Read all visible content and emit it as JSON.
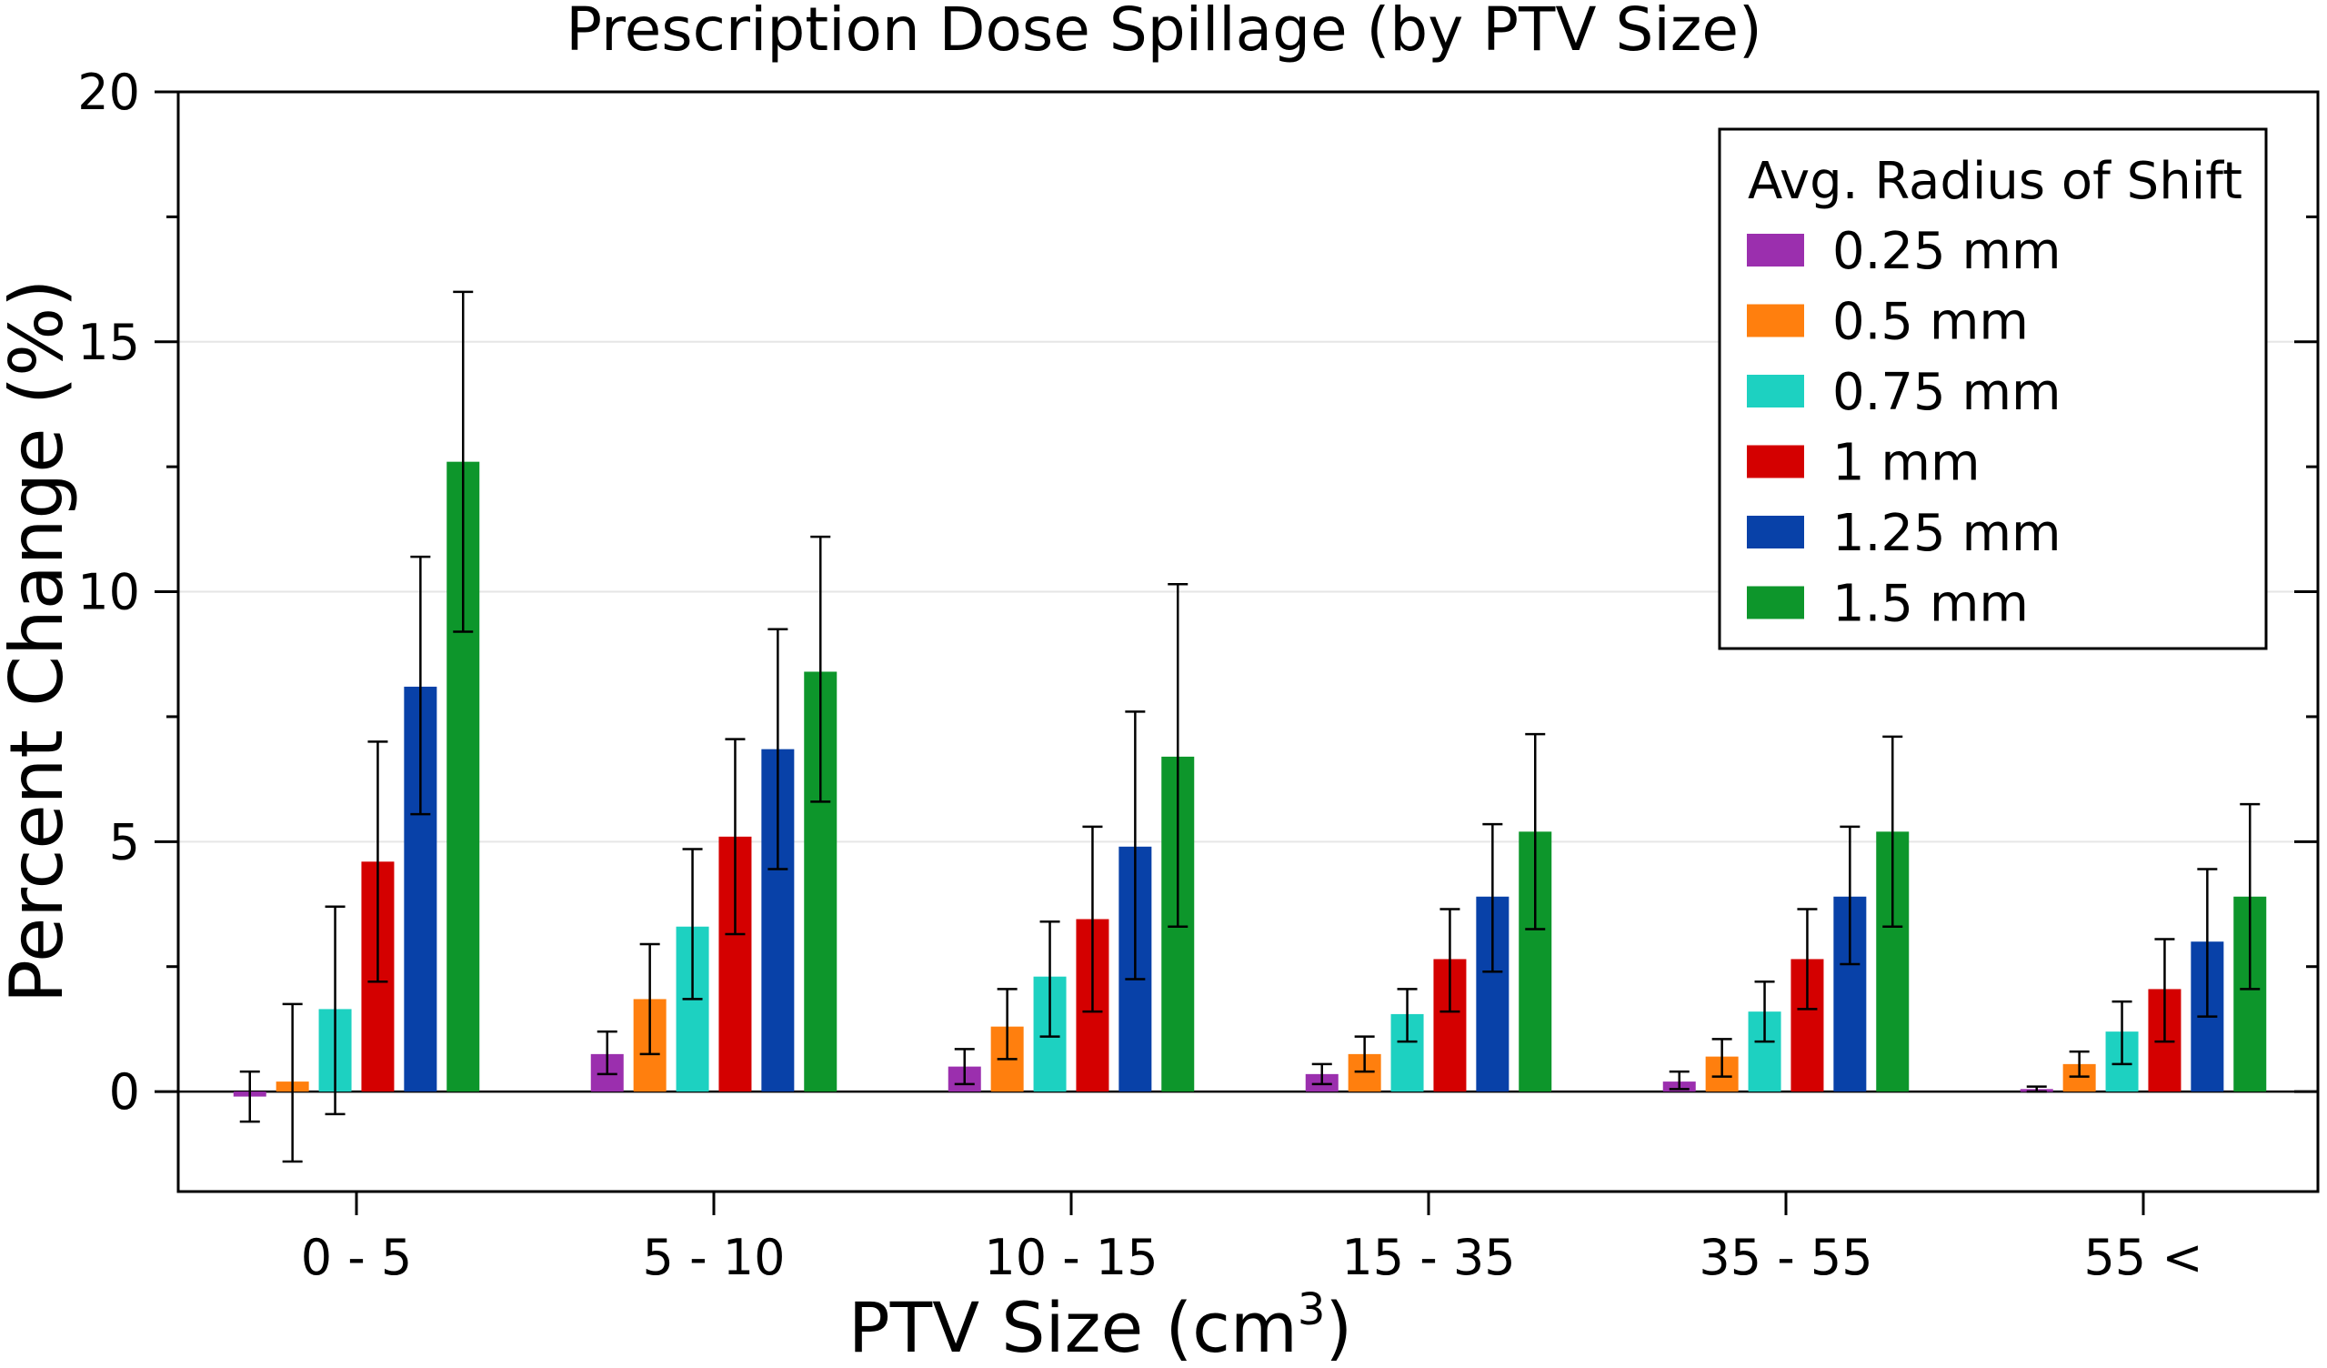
{
  "chart_data": {
    "type": "bar",
    "title": "Prescription Dose Spillage (by PTV Size)",
    "xlabel": "PTV Size (cm",
    "xlabel_superscript": "3",
    "xlabel_suffix": ")",
    "ylabel": "Percent Change (%)",
    "ylim": [
      -2,
      20
    ],
    "yticks": [
      0,
      5,
      10,
      15,
      20
    ],
    "ytick_labels": [
      "0",
      "5",
      "10",
      "15",
      "20"
    ],
    "grid": "horizontal",
    "legend_title": "Avg. Radius of Shift",
    "legend_position": "top-right",
    "categories": [
      "0 - 5",
      "5 - 10",
      "10 - 15",
      "15 - 35",
      "35 - 55",
      "55 <"
    ],
    "series": [
      {
        "name": "0.25 mm",
        "color": "#9b2fae",
        "values": [
          -0.1,
          0.75,
          0.5,
          0.35,
          0.2,
          0.05
        ],
        "err_low": [
          -0.6,
          0.35,
          0.15,
          0.15,
          0.05,
          0.0
        ],
        "err_high": [
          0.4,
          1.2,
          0.85,
          0.55,
          0.4,
          0.1
        ]
      },
      {
        "name": "0.5 mm",
        "color": "#ff7f0e",
        "values": [
          0.2,
          1.85,
          1.3,
          0.75,
          0.7,
          0.55
        ],
        "err_low": [
          -1.4,
          0.75,
          0.65,
          0.4,
          0.3,
          0.3
        ],
        "err_high": [
          1.75,
          2.95,
          2.05,
          1.1,
          1.05,
          0.8
        ]
      },
      {
        "name": "0.75 mm",
        "color": "#1dd1c1",
        "values": [
          1.65,
          3.3,
          2.3,
          1.55,
          1.6,
          1.2
        ],
        "err_low": [
          -0.45,
          1.85,
          1.1,
          1.0,
          1.0,
          0.55
        ],
        "err_high": [
          3.7,
          4.85,
          3.4,
          2.05,
          2.2,
          1.8
        ]
      },
      {
        "name": "1 mm",
        "color": "#d40000",
        "values": [
          4.6,
          5.1,
          3.45,
          2.65,
          2.65,
          2.05
        ],
        "err_low": [
          2.2,
          3.15,
          1.6,
          1.6,
          1.65,
          1.0
        ],
        "err_high": [
          7.0,
          7.05,
          5.3,
          3.65,
          3.65,
          3.05
        ]
      },
      {
        "name": "1.25 mm",
        "color": "#0841a8",
        "values": [
          8.1,
          6.85,
          4.9,
          3.9,
          3.9,
          3.0
        ],
        "err_low": [
          5.55,
          4.45,
          2.25,
          2.4,
          2.55,
          1.5
        ],
        "err_high": [
          10.7,
          9.25,
          7.6,
          5.35,
          5.3,
          4.45
        ]
      },
      {
        "name": "1.5 mm",
        "color": "#0d962b",
        "values": [
          12.6,
          8.4,
          6.7,
          5.2,
          5.2,
          3.9
        ],
        "err_low": [
          9.2,
          5.8,
          3.3,
          3.25,
          3.3,
          2.05
        ],
        "err_high": [
          16.0,
          11.1,
          10.15,
          7.15,
          7.1,
          5.75
        ]
      }
    ]
  }
}
